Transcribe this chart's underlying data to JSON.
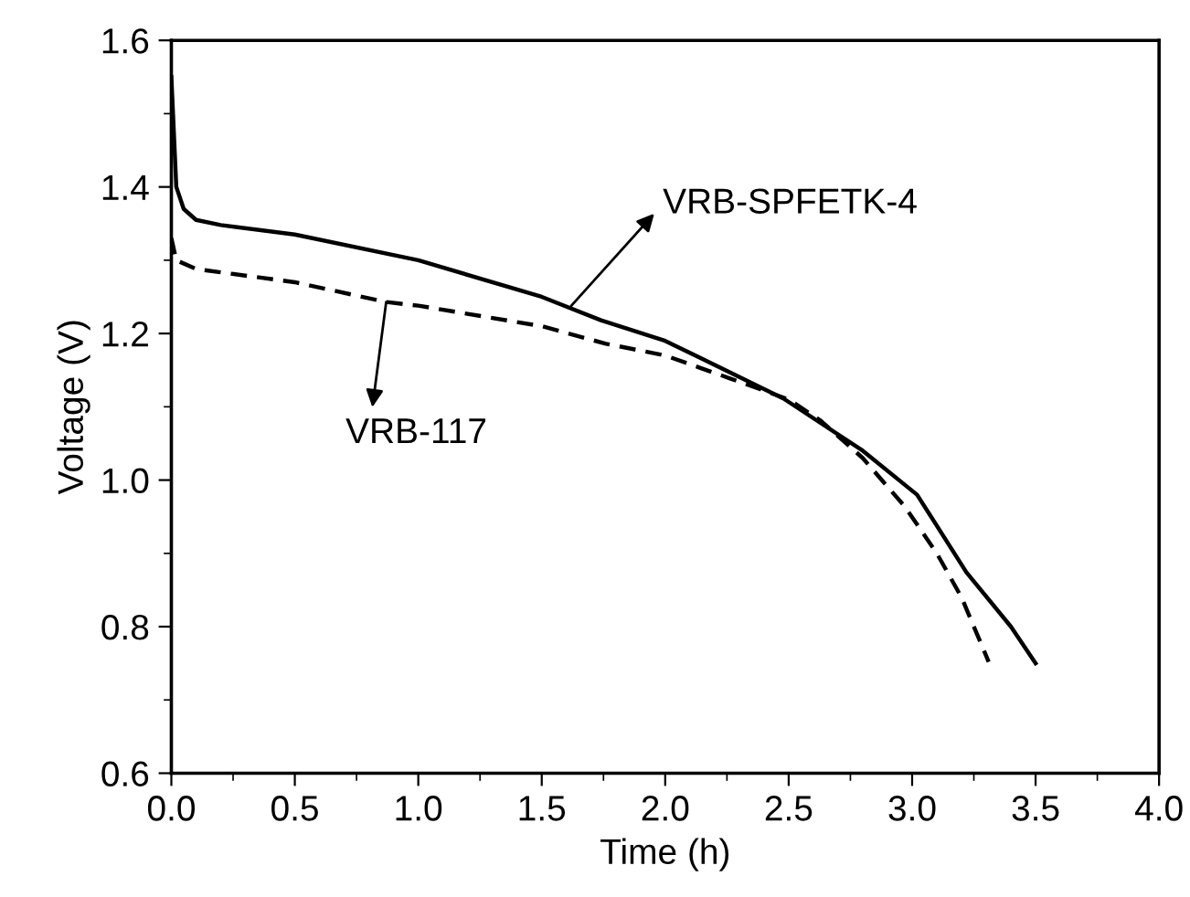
{
  "chart_data": {
    "type": "line",
    "xlabel": "Time (h)",
    "ylabel": "Voltage (V)",
    "xlim": [
      0,
      4
    ],
    "xticks": [
      {
        "value": 0,
        "label": "0.0"
      },
      0.5,
      {
        "value": 1,
        "label": "1.0"
      },
      1.5,
      {
        "value": 2,
        "label": "2.0"
      },
      2.5,
      {
        "value": 3,
        "label": "3.0"
      },
      3.5,
      {
        "value": 4,
        "label": "4.0"
      }
    ],
    "ylim": [
      0.6,
      1.6
    ],
    "yticks": [
      0.6,
      0.8,
      {
        "value": 1,
        "label": "1.0"
      },
      1.2,
      1.4,
      1.6
    ],
    "grid": false,
    "marker": "none",
    "series": [
      {
        "color": "#000000",
        "line_style": "solid",
        "x": [
          0,
          0.02,
          0.05,
          0.1,
          0.2,
          0.5,
          1.0,
          1.5,
          1.74,
          2.0,
          2.48,
          2.8,
          3.02,
          3.22,
          3.4,
          3.5
        ],
        "values": [
          1.55,
          1.4,
          1.37,
          1.355,
          1.348,
          1.335,
          1.3,
          1.25,
          1.218,
          1.19,
          1.111,
          1.04,
          0.98,
          0.874,
          0.8,
          0.75
        ]
      },
      {
        "color": "#000000",
        "line_style": "dashed",
        "x": [
          0,
          0.02,
          0.1,
          0.5,
          0.87,
          1.0,
          1.5,
          1.76,
          2.0,
          2.26,
          2.5,
          2.63,
          2.8,
          2.97,
          3.1,
          3.2,
          3.31
        ],
        "values": [
          1.33,
          1.3,
          1.288,
          1.27,
          1.243,
          1.238,
          1.21,
          1.186,
          1.17,
          1.139,
          1.11,
          1.081,
          1.03,
          0.964,
          0.9,
          0.84,
          0.752
        ]
      }
    ],
    "annotations": [
      {
        "text": "VRB-SPFETK-4",
        "x": 1.62,
        "y": 1.238
      },
      {
        "text": "VRB-117",
        "x": 0.87,
        "y": 1.243
      }
    ]
  }
}
